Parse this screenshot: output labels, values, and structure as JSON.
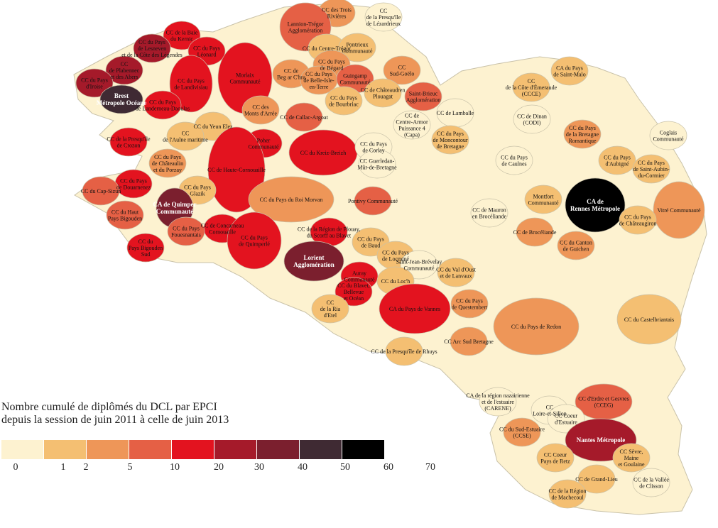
{
  "legend": {
    "title_line1": "Nombre cumulé de diplômés du DCL par EPCI",
    "title_line2": "depuis la session de juin 2011 à celle de juin 2013",
    "colors": [
      "#fdf2d0",
      "#f4bf72",
      "#ee9658",
      "#e56045",
      "#e3131f",
      "#a51a2a",
      "#7b1f2e",
      "#3f2a33",
      "#000000"
    ],
    "ticks": [
      "0",
      "1",
      "2",
      "5",
      "10",
      "20",
      "30",
      "40",
      "50",
      "60",
      "70"
    ]
  },
  "map": {
    "land_color": "#fdf2d0",
    "border_color": "#c9c2a9",
    "labels": [
      {
        "id": "cc-trois-rivieres",
        "lines": [
          "CC des Trois",
          "Rivières"
        ]
      },
      {
        "id": "cc-presquile-lezardrieux",
        "lines": [
          "CC",
          "de la Presqu'île",
          "de Lézardrieux"
        ]
      },
      {
        "id": "lannion-tregor",
        "lines": [
          "Lannion-Trégor",
          "Agglomération"
        ]
      },
      {
        "id": "cc-baie-kernic",
        "lines": [
          "CC de la Baie",
          "du Kernic"
        ]
      },
      {
        "id": "cc-pays-leonard",
        "lines": [
          "CC du Pays",
          "Léonard"
        ]
      },
      {
        "id": "cc-pays-lesneven",
        "lines": [
          "CC du Pays",
          "de Lesneven",
          "et de la Côte des Légendes"
        ]
      },
      {
        "id": "cc-centre-tregor",
        "lines": [
          "CC du Centre-Trégor"
        ]
      },
      {
        "id": "pontrieux",
        "lines": [
          "Pontrieux",
          "Communauté"
        ]
      },
      {
        "id": "cc-pays-begard",
        "lines": [
          "CC du Pays",
          "de Bégard"
        ]
      },
      {
        "id": "cc-plabennec",
        "lines": [
          "CC",
          "de Plabennec",
          "et des Abers"
        ]
      },
      {
        "id": "cc-pays-iroise",
        "lines": [
          "CC du Pays",
          "d'Iroise"
        ]
      },
      {
        "id": "morlaix",
        "lines": [
          "Morlaix",
          "Communauté"
        ]
      },
      {
        "id": "cc-pays-landivisiau",
        "lines": [
          "CC du Pays",
          "de Landivisiau"
        ]
      },
      {
        "id": "cc-beg-ar-c-hra",
        "lines": [
          "CC de",
          "Beg ar C'hra"
        ]
      },
      {
        "id": "cc-belle-isle",
        "lines": [
          "CC du Pays",
          "de Belle-Isle-",
          "en-Terre"
        ]
      },
      {
        "id": "guingamp",
        "lines": [
          "Guingamp",
          "Communauté"
        ]
      },
      {
        "id": "sud-goelo",
        "lines": [
          "CC",
          "Sud-Goëlo"
        ]
      },
      {
        "id": "brest",
        "lines": [
          "Brest",
          "Métropole Océane"
        ]
      },
      {
        "id": "cc-pays-bourbriac",
        "lines": [
          "CC du Pays",
          "de Bourbriac"
        ]
      },
      {
        "id": "cc-chateaudren",
        "lines": [
          "CC de Châteaudren",
          "Plouagat"
        ]
      },
      {
        "id": "saint-brieuc",
        "lines": [
          "Saint-Brieuc",
          "Agglomération"
        ]
      },
      {
        "id": "cc-landerneau",
        "lines": [
          "CC du Pays",
          "de Landerneau-Daoulas"
        ]
      },
      {
        "id": "cc-monts-arree",
        "lines": [
          "CC des",
          "Monts d'Arrée"
        ]
      },
      {
        "id": "cc-callac",
        "lines": [
          "CC de Callac-Argoat"
        ]
      },
      {
        "id": "cc-lamballe",
        "lines": [
          "CC de Lamballe"
        ]
      },
      {
        "id": "cc-yeun-elez",
        "lines": [
          "CC du Yeun Elez"
        ]
      },
      {
        "id": "cc-aulne-maritime",
        "lines": [
          "CC",
          "de l'Aulne maritime"
        ]
      },
      {
        "id": "centre-armor",
        "lines": [
          "CC de",
          "Centre-Armor",
          "Puissance 4",
          "(Capa)"
        ]
      },
      {
        "id": "cc-moncontour",
        "lines": [
          "CC du Pays",
          "de Moncontour",
          "de Bretagne"
        ]
      },
      {
        "id": "cc-presquile-crozon",
        "lines": [
          "CC de la Presqu'île",
          "de Crozon"
        ]
      },
      {
        "id": "poher",
        "lines": [
          "Poher",
          "Communauté"
        ]
      },
      {
        "id": "cc-kreiz-breizh",
        "lines": [
          "CC du Kreiz-Breizh"
        ]
      },
      {
        "id": "cc-pays-corlay",
        "lines": [
          "CC du Pays",
          "de Corlay"
        ]
      },
      {
        "id": "cc-chateaulin",
        "lines": [
          "CC du Pays",
          "de Châteaulin",
          "et du Porzay"
        ]
      },
      {
        "id": "cc-haute-cornouaille",
        "lines": [
          "CC de Haute-Cornouaille"
        ]
      },
      {
        "id": "cc-guerledan",
        "lines": [
          "CC Guerledan-",
          "Mûr-de-Bretagne"
        ]
      },
      {
        "id": "cc-douarnenez",
        "lines": [
          "CC du Pays",
          "de Douarnenez"
        ]
      },
      {
        "id": "cc-cap-sizun",
        "lines": [
          "CC du Cap-Sizun"
        ]
      },
      {
        "id": "cc-pays-glazik",
        "lines": [
          "CC du Pays",
          "Glazik"
        ]
      },
      {
        "id": "cc-roi-morvan",
        "lines": [
          "CC du Pays du Roi Morvan"
        ]
      },
      {
        "id": "pontivy",
        "lines": [
          "Pontivy Communauté"
        ]
      },
      {
        "id": "quimper",
        "lines": [
          "CA de Quimper",
          "Communauté"
        ]
      },
      {
        "id": "cc-haut-bigouden",
        "lines": [
          "CC du Haut",
          "Pays Bigouden"
        ]
      },
      {
        "id": "cc-concarneau",
        "lines": [
          "CC de Concarneau",
          "Cornouaille"
        ]
      },
      {
        "id": "cc-quimperle",
        "lines": [
          "CC du Pays",
          "de Quimperlé"
        ]
      },
      {
        "id": "cc-fouesnantais",
        "lines": [
          "CC du Pays",
          "Fouesnantais"
        ]
      },
      {
        "id": "cc-pays-bigouden-sud",
        "lines": [
          "CC du",
          "Pays Bigouden",
          "Sud"
        ]
      },
      {
        "id": "cc-plouay",
        "lines": [
          "CC de la Région de Plouay,",
          "du Scorff au Blavet"
        ]
      },
      {
        "id": "cc-pays-baud",
        "lines": [
          "CC du Pays",
          "de Baud"
        ]
      },
      {
        "id": "cc-pays-locmine",
        "lines": [
          "CC du Pays",
          "de Locminé"
        ]
      },
      {
        "id": "lorient",
        "lines": [
          "Lorient",
          "Agglomération"
        ]
      },
      {
        "id": "saint-jean-brevelay",
        "lines": [
          "Saint-Jean-Brévelay",
          "Communauté"
        ]
      },
      {
        "id": "cc-val-oust",
        "lines": [
          "CC du Val d'Oust",
          "et de Lanvaux"
        ]
      },
      {
        "id": "auray",
        "lines": [
          "Auray",
          "Communauté"
        ]
      },
      {
        "id": "cc-loc-h",
        "lines": [
          "CC du Loc'h"
        ]
      },
      {
        "id": "cc-blavet",
        "lines": [
          "CC du Blavet,",
          "Bellevue",
          "et Océan"
        ]
      },
      {
        "id": "cc-ria-etel",
        "lines": [
          "CC",
          "de la Ria",
          "d'Etel"
        ]
      },
      {
        "id": "cc-pays-vannes",
        "lines": [
          "CA du Pays de Vannes"
        ]
      },
      {
        "id": "cc-questembert",
        "lines": [
          "CC du Pays",
          "de Questembert"
        ]
      },
      {
        "id": "cc-presquile-rhuys",
        "lines": [
          "CC de la Presqu'île de Rhuys"
        ]
      },
      {
        "id": "cc-arc-sud",
        "lines": [
          "CC Arc Sud Bretagne"
        ]
      },
      {
        "id": "ca-saint-malo",
        "lines": [
          "CA du Pays",
          "de Saint-Malo"
        ]
      },
      {
        "id": "cc-cote-emeraude",
        "lines": [
          "CC",
          "de la Côte d'Émeraude",
          "(CCCE)"
        ]
      },
      {
        "id": "cc-dinan",
        "lines": [
          "CC de Dinan",
          "(CODI)"
        ]
      },
      {
        "id": "cc-bretagne-romantique",
        "lines": [
          "CC du Pays",
          "de la Bretagne",
          "Romantique"
        ]
      },
      {
        "id": "coglais",
        "lines": [
          "Coglais",
          "Communauté"
        ]
      },
      {
        "id": "cc-caulnes",
        "lines": [
          "CC du Pays",
          "de Caulnes"
        ]
      },
      {
        "id": "cc-aubigne",
        "lines": [
          "CC du Pays",
          "d'Aubigné"
        ]
      },
      {
        "id": "cc-saint-aubin",
        "lines": [
          "CC du Pays",
          "de Saint-Aubin-",
          "du-Cormier"
        ]
      },
      {
        "id": "montfort",
        "lines": [
          "Montfort",
          "Communauté"
        ]
      },
      {
        "id": "rennes",
        "lines": [
          "CA de",
          "Rennes Métropole"
        ]
      },
      {
        "id": "vitre",
        "lines": [
          "Vitré Communauté"
        ]
      },
      {
        "id": "cc-mauron",
        "lines": [
          "CC de Mauron",
          "en Brocéliande"
        ]
      },
      {
        "id": "cc-chateaugiron",
        "lines": [
          "CC du Pays",
          "de Châteaugiron"
        ]
      },
      {
        "id": "cc-broceliande",
        "lines": [
          "CC de Brocéliande"
        ]
      },
      {
        "id": "cc-guichen",
        "lines": [
          "CC du Canton",
          "de Guichen"
        ]
      },
      {
        "id": "cc-castelbriantais",
        "lines": [
          "CC du Castelbriantais"
        ]
      },
      {
        "id": "cc-pays-redon",
        "lines": [
          "CC du Pays de Redon"
        ]
      },
      {
        "id": "carene",
        "lines": [
          "CA de la région nazairienne",
          "et de l'estuaire",
          "(CARENE)"
        ]
      },
      {
        "id": "cc-loire-sillon",
        "lines": [
          "CC",
          "Loire-et-Sillon"
        ]
      },
      {
        "id": "cc-erdre-gesvres",
        "lines": [
          "CC d'Erdre et Gesvres",
          "(CCEG)"
        ]
      },
      {
        "id": "cc-coeur-estuaire",
        "lines": [
          "CC Coeur",
          "d'Estuaire"
        ]
      },
      {
        "id": "ccse",
        "lines": [
          "CC du Sud-Estuaire",
          "(CCSE)"
        ]
      },
      {
        "id": "nantes",
        "lines": [
          "Nantes Métropole"
        ]
      },
      {
        "id": "cc-coeur-pays-retz",
        "lines": [
          "CC Coeur",
          "Pays de Retz"
        ]
      },
      {
        "id": "cc-sevre-maine",
        "lines": [
          "CC Sèvre,",
          "Maine",
          "et Goulaine"
        ]
      },
      {
        "id": "cc-grand-lieu",
        "lines": [
          "CC de Grand-Lieu"
        ]
      },
      {
        "id": "cc-vallee-clisson",
        "lines": [
          "CC de la Vallée",
          "de Clisson"
        ]
      },
      {
        "id": "cc-machecoul",
        "lines": [
          "CC de la Région",
          "de Machecoul"
        ]
      }
    ]
  }
}
